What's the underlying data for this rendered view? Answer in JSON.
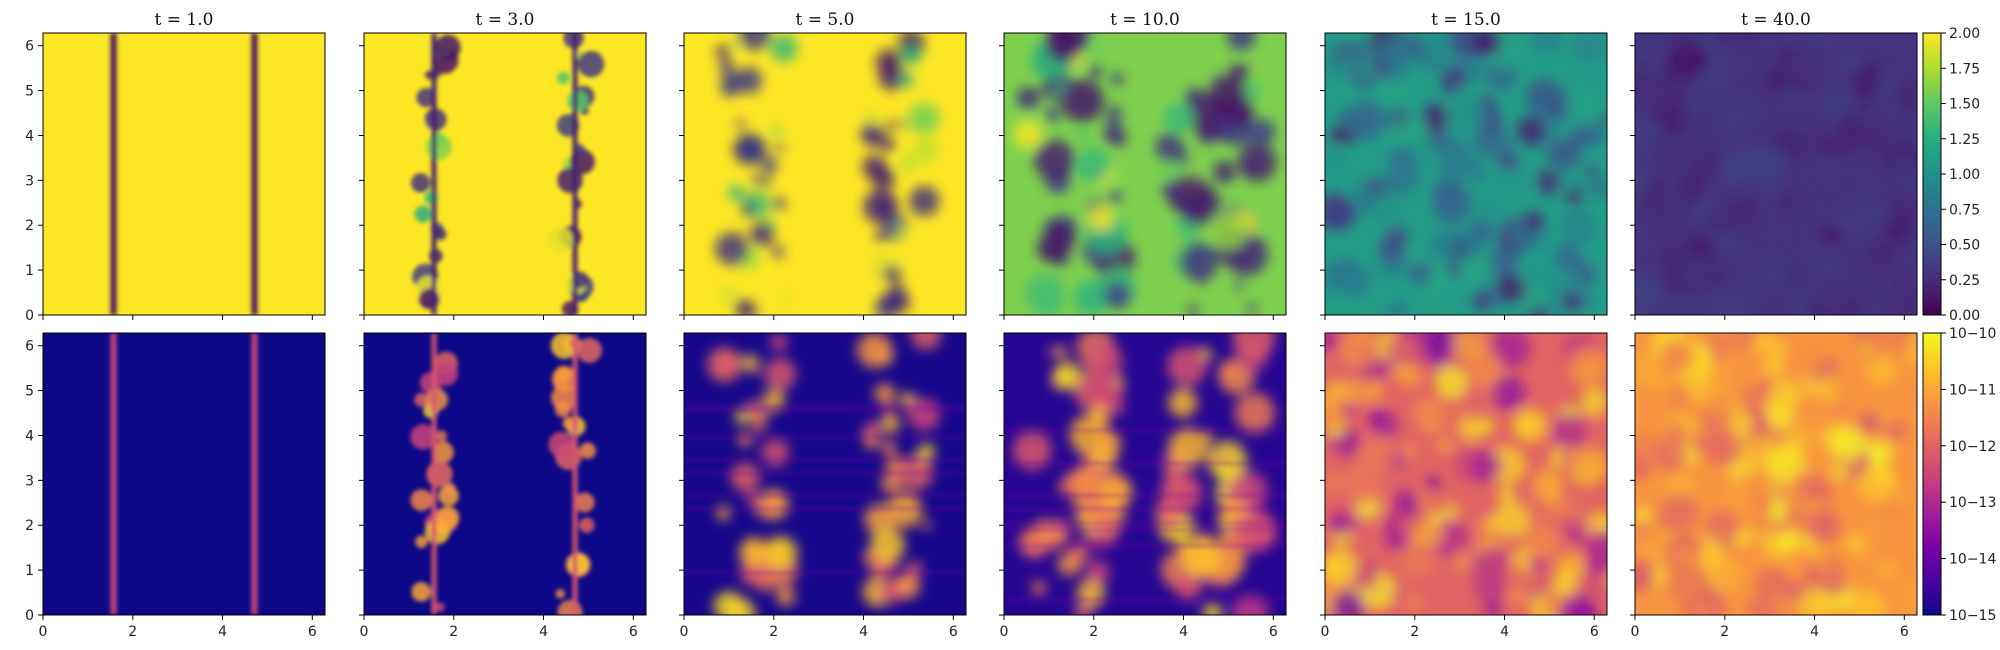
{
  "chart_data": {
    "type": "heatmap",
    "layout": {
      "rows": 2,
      "columns": 6
    },
    "panel_titles": [
      "t = 1.0",
      "t = 3.0",
      "t = 5.0",
      "t = 10.0",
      "t = 15.0",
      "t = 40.0"
    ],
    "x_axis": {
      "range": [
        0,
        6.283
      ],
      "ticks": [
        0,
        2,
        4,
        6
      ],
      "tick_labels": [
        "0",
        "2",
        "4",
        "6"
      ]
    },
    "y_axis": {
      "range": [
        0,
        6.283
      ],
      "ticks": [
        0,
        1,
        2,
        3,
        4,
        5,
        6
      ],
      "tick_labels": [
        "0",
        "1",
        "2",
        "3",
        "4",
        "5",
        "6"
      ]
    },
    "rows": [
      {
        "colormap": "viridis",
        "scale": "linear",
        "colorbar": {
          "range": [
            0,
            2
          ],
          "ticks": [
            0,
            0.25,
            0.5,
            0.75,
            1.0,
            1.25,
            1.5,
            1.75,
            2.0
          ],
          "tick_labels": [
            "0.00",
            "0.25",
            "0.50",
            "0.75",
            "1.00",
            "1.25",
            "1.50",
            "1.75",
            "2.00"
          ]
        },
        "background_level": [
          1.0,
          1.0,
          1.0,
          0.8,
          0.55,
          0.15
        ]
      },
      {
        "colormap": "plasma",
        "scale": "log",
        "colorbar": {
          "range": [
            1e-15,
            1e-10
          ],
          "ticks": [
            -15,
            -14,
            -13,
            -12,
            -11,
            -10
          ],
          "tick_labels": [
            "10−15",
            "10−14",
            "10−13",
            "10−12",
            "10−11",
            "10−10"
          ]
        },
        "background_level": [
          0.0,
          0.0,
          0.02,
          0.05,
          0.6,
          0.75
        ]
      }
    ],
    "grid": false,
    "colors": {
      "axes": "#000000",
      "text": "#222222"
    }
  }
}
